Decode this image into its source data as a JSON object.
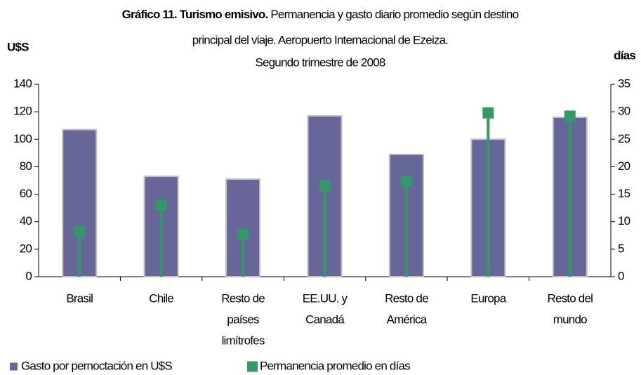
{
  "chart_data": {
    "type": "bar_line",
    "title": "Gráfico 11. Turismo emisivo.",
    "subtitle": [
      "Permanencia y gasto diario promedio según destino",
      "principal del viaje. Aeropuerto Internacional de Ezeiza.",
      "Segundo trimestre de 2008"
    ],
    "y_label": "U$S",
    "y2_label": "días",
    "categories": [
      [
        "Brasil"
      ],
      [
        "Chile"
      ],
      [
        "Resto de",
        "países",
        "limítrofes"
      ],
      [
        "EE.UU. y",
        "Canadá"
      ],
      [
        "Resto de",
        "América"
      ],
      [
        "Europa"
      ],
      [
        "Resto del",
        "mundo"
      ]
    ],
    "series": [
      {
        "name": "Gasto por pernoctación en U$S",
        "color": "#666699",
        "type": "bar",
        "values": [
          107,
          73,
          71,
          117,
          89,
          100,
          116
        ]
      },
      {
        "name": "Permanencia promedio en días",
        "color": "#339966",
        "type": "marker",
        "axis": "y2",
        "values": [
          8.2,
          13.0,
          7.7,
          16.5,
          17.4,
          29.8,
          29.2
        ]
      }
    ],
    "ylim": [
      0,
      140
    ],
    "yticks": [
      0,
      20,
      40,
      60,
      80,
      100,
      120,
      140
    ],
    "y2lim": [
      0,
      35
    ],
    "y2ticks": [
      0,
      5,
      10,
      15,
      20,
      25,
      30,
      35
    ]
  }
}
